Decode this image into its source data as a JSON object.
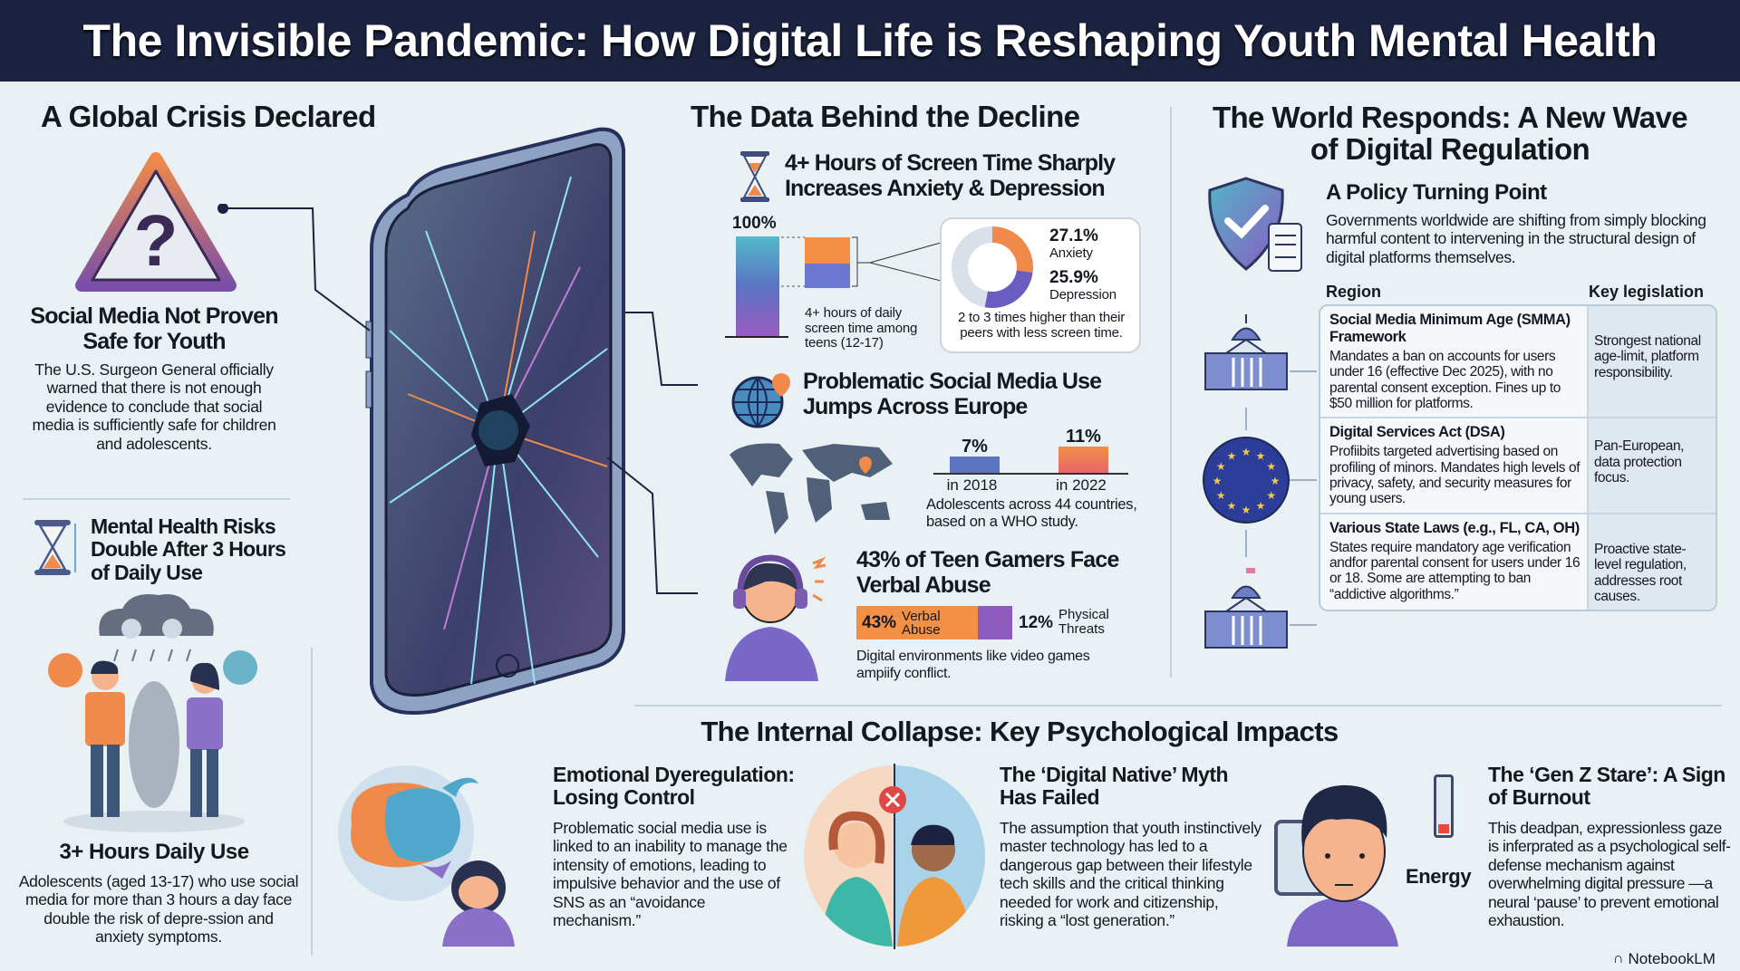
{
  "title": "The Invisible Pandemic: How Digital Life is Reshaping Youth Mental Health",
  "left": {
    "heading": "A Global Crisis Declared",
    "warning": {
      "title": "Social Media Not Proven Safe for Youth",
      "body": "The U.S. Surgeon General officially warned that there is not enough evidence to conclude that social media is sufficiently safe for children and adolescents.",
      "icon": "warning-question-icon"
    },
    "risk": {
      "title": "Mental Health Risks Double After 3 Hours of Daily Use",
      "icon": "hourglass-icon",
      "caption_title": "3+ Hours Daily Use",
      "body": "Adolescents (aged 13-17) who use social media for more than 3 hours a day face double the risk of depre-ssion and anxiety symptoms."
    }
  },
  "middle": {
    "heading": "The Data Behind the Decline",
    "screen_time": {
      "title": "4+ Hours of Screen Time Sharply Increases Anxiety & Depression",
      "total_label": "100%",
      "bar_caption": "4+ hours of daily screen time among teens (12-17)",
      "anxiety_value": "27.1%",
      "anxiety_label": "Anxiety",
      "depression_value": "25.9%",
      "depression_label": "Depression",
      "anxiety_pct": 27.1,
      "depression_pct": 25.9,
      "note": "2 to 3 times higher than their peers with less screen time."
    },
    "europe": {
      "title": "Problematic Social Media Use Jumps Across Europe",
      "bars": [
        {
          "value": "7%",
          "num": 7,
          "label": "in 2018",
          "color": "#5b74c4"
        },
        {
          "value": "11%",
          "num": 11,
          "label": "in 2022",
          "color": "#f08a4b"
        }
      ],
      "note": "Adolescents across 44 countries, based on a WHO study."
    },
    "gamers": {
      "title": "43% of Teen Gamers Face Verbal Abuse",
      "verbal_value": "43%",
      "verbal_label": "Verbal Abuse",
      "verbal_pct": 43,
      "physical_value": "12%",
      "physical_label": "Physical Threats",
      "physical_pct": 12,
      "note": "Digital environments like video games ampiify conflict."
    }
  },
  "right": {
    "heading": "The World Responds: A New Wave of Digital Regulation",
    "policy": {
      "title": "A Policy Turning Point",
      "body": "Governments worldwide are shifting from simply blocking harmful content to intervening in the structural design of digital platforms themselves."
    },
    "table": {
      "headers": [
        "Region",
        "Key legislation"
      ],
      "rows": [
        {
          "icon": "capitol-building-icon",
          "title": "Social Media Minimum Age (SMMA) Framework",
          "body": "Mandates a ban on accounts for users under 16 (effective Dec 2025), with no parental consent exception. Fines up to $50 million for platforms.",
          "note": "Strongest national age-limit, platform responsibility."
        },
        {
          "icon": "eu-flag-icon",
          "title": "Digital Services Act (DSA)",
          "body": "Profiibits targeted advertising based on profiling of minors. Mandates high levels of privacy, safety, and security measures for young users.",
          "note": "Pan-European, data protection focus."
        },
        {
          "icon": "state-capitol-icon",
          "title": "Various State Laws (e.g., FL, CA, OH)",
          "body": "States require mandatory age verification andfor parental consent for users under 16 or 18. Some are attempting to ban “addictive algorithms.”",
          "note": "Proactive state-level regulation, addresses root causes."
        }
      ]
    }
  },
  "bottom": {
    "heading": "The Internal Collapse: Key Psychological Impacts",
    "items": [
      {
        "title": "Emotional Dyeregulation: Losing Control",
        "body": "Problematic social media use is linked to an inability to manage the intensity of emotions, leading to impulsive behavior and the use of SNS as an “avoidance mechanism.”"
      },
      {
        "title": "The ‘Digital Native’ Myth Has Failed",
        "body": "The assumption that youth instinctively master technology has led to a dangerous gap between their lifestyle tech skills and the critical thinking needed for work and citizenship, risking a “lost generation.”"
      },
      {
        "title": "The ‘Gen Z Stare’: A Sign of Burnout",
        "body": "This deadpan, expressionless gaze is inferprated as a psychological self-defense mechanism against overwhelming digital pressure —a neural ‘pause’ to prevent emotional exhaustion.",
        "energy_label": "Energy",
        "energy_pct": 15
      }
    ]
  },
  "brand": "NotebookLM",
  "colors": {
    "header": "#1b2340",
    "orange": "#f08a4b",
    "purple": "#8a5cc0",
    "blue": "#5b74c4",
    "teal": "#4fb3c4"
  }
}
